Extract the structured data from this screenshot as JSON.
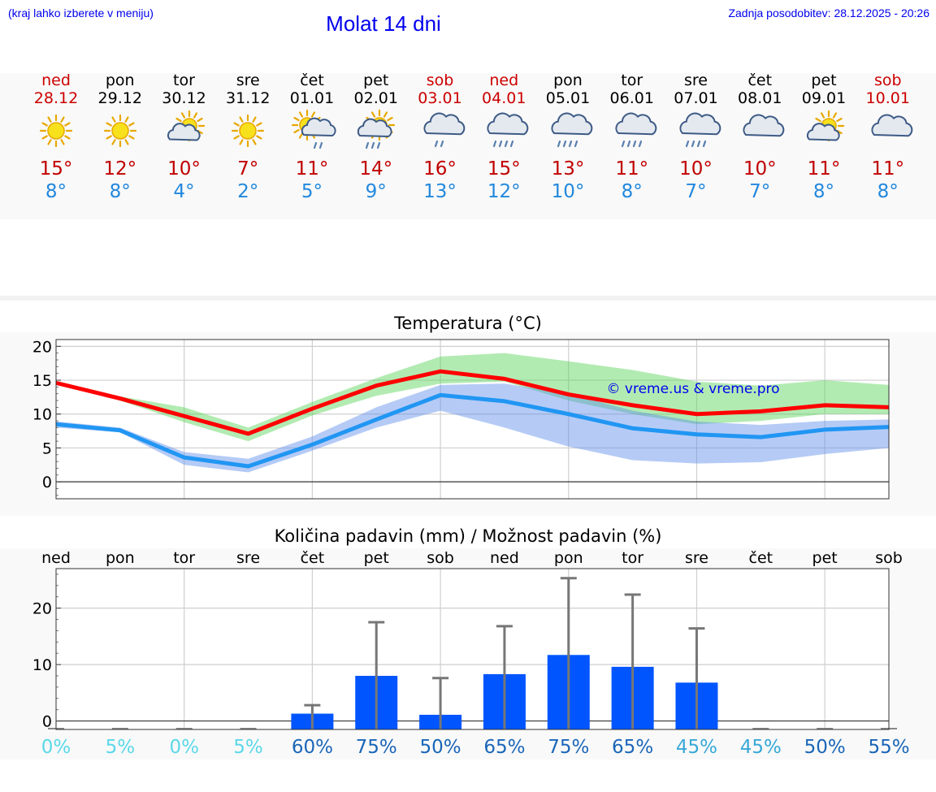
{
  "header": {
    "hint": "(kraj lahko izberete v meniju)",
    "title": "Molat 14 dni",
    "updated": "Zadnja posodobitev: 28.12.2025 - 20:26"
  },
  "colors": {
    "link": "#0000ee",
    "weekend": "#cc0000",
    "tmax": "#c00000",
    "tmin": "#2288dd",
    "bar": "#0055ff",
    "maxLine": "#ff0000",
    "minLine": "#2196f3"
  },
  "days": [
    {
      "name": "ned",
      "date": "28.12",
      "weekend": true,
      "icon": "sun-icon",
      "tmax": "15°",
      "tmin": "8°"
    },
    {
      "name": "pon",
      "date": "29.12",
      "weekend": false,
      "icon": "sun-icon",
      "tmax": "12°",
      "tmin": "8°"
    },
    {
      "name": "tor",
      "date": "30.12",
      "weekend": false,
      "icon": "sun-cloud-icon",
      "tmax": "10°",
      "tmin": "4°"
    },
    {
      "name": "sre",
      "date": "31.12",
      "weekend": false,
      "icon": "sun-icon",
      "tmax": "7°",
      "tmin": "2°"
    },
    {
      "name": "čet",
      "date": "01.01",
      "weekend": false,
      "icon": "sun-cloud-rain-icon",
      "tmax": "11°",
      "tmin": "5°"
    },
    {
      "name": "pet",
      "date": "02.01",
      "weekend": false,
      "icon": "sun-cloud-heavy-rain-icon",
      "tmax": "14°",
      "tmin": "9°"
    },
    {
      "name": "sob",
      "date": "03.01",
      "weekend": true,
      "icon": "cloud-rain-icon",
      "tmax": "16°",
      "tmin": "13°"
    },
    {
      "name": "ned",
      "date": "04.01",
      "weekend": true,
      "icon": "cloud-heavy-rain-icon",
      "tmax": "15°",
      "tmin": "12°"
    },
    {
      "name": "pon",
      "date": "05.01",
      "weekend": false,
      "icon": "cloud-heavy-rain-icon",
      "tmax": "13°",
      "tmin": "10°"
    },
    {
      "name": "tor",
      "date": "06.01",
      "weekend": false,
      "icon": "cloud-heavy-rain-icon",
      "tmax": "11°",
      "tmin": "8°"
    },
    {
      "name": "sre",
      "date": "07.01",
      "weekend": false,
      "icon": "cloud-heavy-rain-icon",
      "tmax": "10°",
      "tmin": "7°"
    },
    {
      "name": "čet",
      "date": "08.01",
      "weekend": false,
      "icon": "cloud-icon",
      "tmax": "10°",
      "tmin": "7°"
    },
    {
      "name": "pet",
      "date": "09.01",
      "weekend": false,
      "icon": "sun-cloud-icon",
      "tmax": "11°",
      "tmin": "8°"
    },
    {
      "name": "sob",
      "date": "10.01",
      "weekend": true,
      "icon": "cloud-icon",
      "tmax": "11°",
      "tmin": "8°"
    }
  ],
  "chart_data": [
    {
      "type": "line",
      "title": "Temperatura (°C)",
      "xlabel": "",
      "ylabel": "",
      "ylim": [
        -2.5,
        21
      ],
      "yticks": [
        0,
        5,
        10,
        15,
        20
      ],
      "grid": true,
      "annotation": "© vreme.us & vreme.pro",
      "x": [
        0,
        1,
        2,
        3,
        4,
        5,
        6,
        7,
        8,
        9,
        10,
        11,
        12,
        13
      ],
      "series": [
        {
          "name": "max",
          "values": [
            14.6,
            12.3,
            9.7,
            7.1,
            10.8,
            14.2,
            16.3,
            15.2,
            12.9,
            11.3,
            10.0,
            10.4,
            11.3,
            11.0
          ],
          "band_low": [
            14.5,
            12.0,
            8.8,
            6.0,
            9.8,
            12.7,
            14.5,
            14.8,
            12.0,
            10.0,
            8.5,
            9.0,
            10.0,
            10.0
          ],
          "band_high": [
            14.9,
            12.6,
            11.0,
            8.0,
            11.8,
            15.3,
            18.5,
            19.0,
            17.8,
            16.5,
            14.8,
            14.2,
            15.0,
            14.3
          ]
        },
        {
          "name": "min",
          "values": [
            8.5,
            7.6,
            3.6,
            2.3,
            5.5,
            9.2,
            12.8,
            11.9,
            10.0,
            7.9,
            7.0,
            6.6,
            7.7,
            8.1
          ],
          "band_low": [
            8.0,
            7.3,
            2.5,
            1.4,
            4.6,
            8.0,
            10.5,
            8.0,
            5.2,
            3.2,
            2.7,
            2.9,
            4.1,
            5.0
          ],
          "band_high": [
            8.9,
            8.0,
            4.4,
            3.4,
            6.7,
            11.0,
            14.3,
            14.5,
            13.0,
            10.5,
            8.9,
            8.4,
            9.0,
            9.2
          ]
        }
      ]
    },
    {
      "type": "bar",
      "title": "Količina padavin (mm) / Možnost padavin (%)",
      "categories": [
        "ned",
        "pon",
        "tor",
        "sre",
        "čet",
        "pet",
        "sob",
        "ned",
        "pon",
        "tor",
        "sre",
        "čet",
        "pet",
        "sob"
      ],
      "ylim": [
        -1.5,
        27
      ],
      "yticks": [
        0,
        10,
        20
      ],
      "grid": true,
      "values": [
        0,
        0,
        0,
        0,
        1.3,
        8.0,
        1.1,
        8.3,
        11.7,
        9.6,
        6.8,
        0,
        0,
        0
      ],
      "error_max": [
        0,
        0,
        0,
        0,
        2.8,
        17.5,
        7.6,
        16.8,
        25.3,
        22.4,
        16.4,
        0,
        0,
        0
      ],
      "probability": [
        "0%",
        "5%",
        "0%",
        "5%",
        "60%",
        "75%",
        "50%",
        "65%",
        "75%",
        "65%",
        "45%",
        "45%",
        "50%",
        "55%"
      ],
      "probability_colors": [
        "#5bd8e8",
        "#5bd8e8",
        "#5bd8e8",
        "#5bd8e8",
        "#1a66b8",
        "#1a66b8",
        "#1a66b8",
        "#1a66b8",
        "#1a66b8",
        "#1a66b8",
        "#38a8d8",
        "#38a8d8",
        "#1a66b8",
        "#1a66b8"
      ]
    }
  ]
}
